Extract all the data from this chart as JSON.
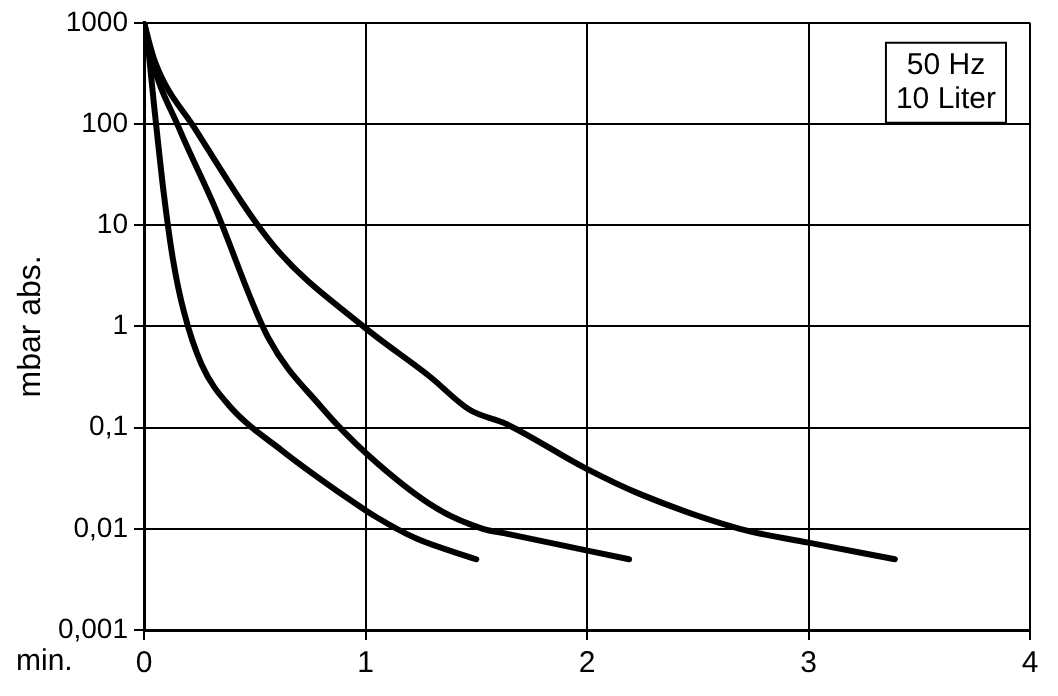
{
  "chart_data": {
    "type": "line",
    "xlabel": "min.",
    "ylabel": "mbar abs.",
    "annotations": [
      "50 Hz\n10 Liter"
    ],
    "log": "y",
    "grid": true,
    "legend": false,
    "marker": "none",
    "line_style": "solid",
    "xlim": [
      0,
      4
    ],
    "xticks": [
      0,
      1,
      2,
      3,
      4
    ],
    "ylim": [
      0.001,
      1000
    ],
    "yticks": [
      {
        "value": 0.001,
        "label": "0,001"
      },
      {
        "value": 0.01,
        "label": "0,01"
      },
      {
        "value": 0.1,
        "label": "0,1"
      },
      1,
      10,
      100,
      1000
    ],
    "series": [
      {
        "color": "#000000",
        "x": [
          0,
          0.01,
          0.05,
          0.09,
          0.13,
          0.18,
          0.26,
          0.39,
          0.62,
          0.92,
          1.05,
          1.23,
          1.5
        ],
        "values": [
          1000,
          800,
          123,
          20,
          4.7,
          1.4,
          0.42,
          0.16,
          0.06,
          0.02,
          0.013,
          0.008,
          0.005
        ]
      },
      {
        "color": "#000000",
        "x": [
          0,
          0.03,
          0.16,
          0.32,
          0.56,
          0.8,
          1.01,
          1.32,
          1.53,
          1.63,
          2.19
        ],
        "values": [
          1000,
          470,
          89,
          15,
          0.78,
          0.16,
          0.054,
          0.016,
          0.01,
          0.009,
          0.005
        ]
      },
      {
        "color": "#000000",
        "x": [
          0,
          0.05,
          0.23,
          0.59,
          0.99,
          1.29,
          1.47,
          1.63,
          1.99,
          2.24,
          2.69,
          3.0,
          3.39
        ],
        "values": [
          1000,
          410,
          90,
          6.1,
          1.0,
          0.32,
          0.15,
          0.11,
          0.04,
          0.022,
          0.01,
          0.0073,
          0.005
        ]
      }
    ]
  }
}
